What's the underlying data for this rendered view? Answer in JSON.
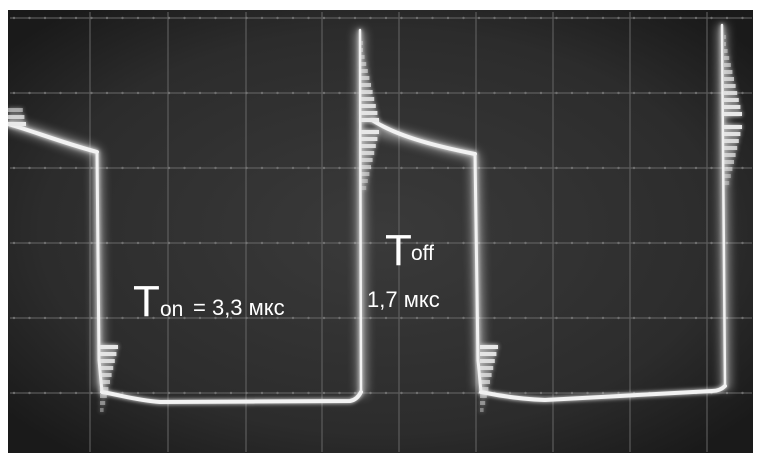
{
  "annotations": {
    "t_on_symbol": "T",
    "t_on_subscript": "on",
    "t_on_value": "= 3,3 мкс",
    "t_off_symbol": "T",
    "t_off_subscript": "off",
    "t_off_value": "1,7 мкс"
  },
  "colors": {
    "screen_background": "#2e2e2e",
    "trace": "#f2f2f2",
    "graticule": "#6a6a6a",
    "label_text": "#ffffff",
    "frame": "#ffffff"
  }
}
